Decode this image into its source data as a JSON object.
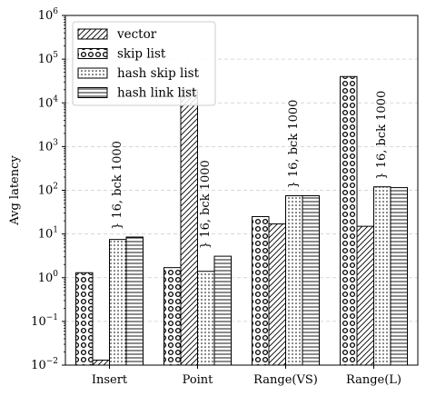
{
  "chart_data": {
    "type": "bar",
    "ylabel": "Avg latency",
    "xlabel": "",
    "yscale": "log",
    "ylim": [
      0.01,
      1000000
    ],
    "ytick_base": "10",
    "ytick_exponents": [
      "−2",
      "−1",
      "0",
      "1",
      "2",
      "3",
      "4",
      "5",
      "6"
    ],
    "grid": "y, dashed",
    "legend_position": "top-left",
    "categories": [
      "Insert",
      "Point",
      "Range(VS)",
      "Range(L)"
    ],
    "series": [
      {
        "name": "vector",
        "pattern": "diagonal-hatch",
        "values": [
          0.013,
          20000,
          17,
          15
        ]
      },
      {
        "name": "skip list",
        "pattern": "circles",
        "values": [
          1.3,
          1.7,
          25,
          40000
        ]
      },
      {
        "name": "hash skip list",
        "pattern": "dots",
        "values": [
          7.5,
          1.4,
          75,
          120
        ]
      },
      {
        "name": "hash link list",
        "pattern": "horizontal-lines",
        "values": [
          8.5,
          3.1,
          75,
          115
        ]
      }
    ],
    "series_order": [
      "skip list",
      "vector",
      "hash skip list",
      "hash link list"
    ],
    "annotations": [
      {
        "category": "Insert",
        "text": "} 16, bck 1000"
      },
      {
        "category": "Point",
        "text": "} 16, bck 1000"
      },
      {
        "category": "Range(VS)",
        "text": "} 16, bck 1000"
      },
      {
        "category": "Range(L)",
        "text": "} 16, bck 1000"
      }
    ],
    "colors": {
      "bar_fill": "#ffffff",
      "edge": "#000000",
      "grid": "#cccccc"
    }
  }
}
